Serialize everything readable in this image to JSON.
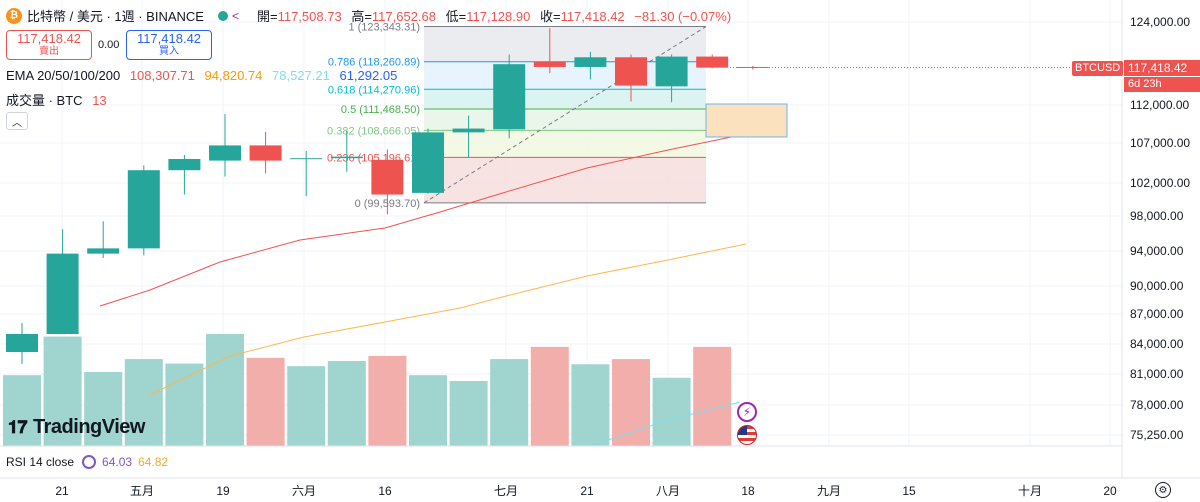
{
  "header": {
    "symbol_title": "比特幣 / 美元 · 1週 · BINANCE",
    "coin_glyph": "₿",
    "ohlc": {
      "open_label": "開=",
      "open": "117,508.73",
      "high_label": "高=",
      "high": "117,652.68",
      "low_label": "低=",
      "low": "117,128.90",
      "close_label": "收=",
      "close": "117,418.42",
      "change": "−81.30 (−0.07%)"
    }
  },
  "trade": {
    "sell_price": "117,418.42",
    "sell_label": "賣出",
    "spread": "0.00",
    "buy_price": "117,418.42",
    "buy_label": "買入"
  },
  "indicators": {
    "ema_label": "EMA 20/50/100/200",
    "ema_values": [
      "108,307.71",
      "94,820.74",
      "78,527.21",
      "61,292.05"
    ],
    "volume_label": "成交量 · BTC",
    "volume_value": "13",
    "rsi_label": "RSI 14 close",
    "rsi_values": [
      "64.03",
      "64.82"
    ]
  },
  "fib_levels": [
    {
      "label": "1 (123,343.31)",
      "ratio": 1,
      "price": 123343.31
    },
    {
      "label": "0.786 (118,260.89)",
      "ratio": 0.786,
      "price": 118260.89
    },
    {
      "label": "0.618 (114,270.96)",
      "ratio": 0.618,
      "price": 114270.96
    },
    {
      "label": "0.5 (111,468.50)",
      "ratio": 0.5,
      "price": 111468.5
    },
    {
      "label": "0.382 (108,666.05)",
      "ratio": 0.382,
      "price": 108666.05
    },
    {
      "label": "0.236 (105,196.61)",
      "ratio": 0.236,
      "price": 105196.61
    },
    {
      "label": "0 (99,593.70)",
      "ratio": 0,
      "price": 99593.7
    }
  ],
  "price_axis": {
    "ticks": [
      "124,000.00",
      "112,000.00",
      "107,000.00",
      "102,000.00",
      "98,000.00",
      "94,000.00",
      "90,000.00",
      "87,000.00",
      "84,000.00",
      "81,000.00",
      "78,000.00",
      "75,250.00"
    ],
    "last_price": "117,418.42",
    "symbol_tag": "BTCUSD",
    "countdown": "6d 23h"
  },
  "time_axis": [
    "21",
    "五月",
    "19",
    "六月",
    "16",
    "七月",
    "21",
    "八月",
    "18",
    "九月",
    "15",
    "十月",
    "20"
  ],
  "chart_data": {
    "type": "candlestick",
    "series": [
      {
        "name": "candles",
        "values": [
          {
            "o": 83200,
            "h": 86100,
            "l": 82000,
            "c": 85000
          },
          {
            "o": 85000,
            "h": 96500,
            "l": 85000,
            "c": 93700
          },
          {
            "o": 93700,
            "h": 97400,
            "l": 93200,
            "c": 94300
          },
          {
            "o": 94300,
            "h": 104200,
            "l": 93500,
            "c": 103600
          },
          {
            "o": 103600,
            "h": 105500,
            "l": 100600,
            "c": 105000
          },
          {
            "o": 104800,
            "h": 110800,
            "l": 102800,
            "c": 106700
          },
          {
            "o": 106700,
            "h": 108500,
            "l": 103200,
            "c": 104800
          },
          {
            "o": 105100,
            "h": 106000,
            "l": 100400,
            "c": 105100
          },
          {
            "o": 105100,
            "h": 108600,
            "l": 103400,
            "c": 105300
          },
          {
            "o": 104900,
            "h": 106200,
            "l": 98200,
            "c": 100600
          },
          {
            "o": 100800,
            "h": 108900,
            "l": 100700,
            "c": 108400
          },
          {
            "o": 108400,
            "h": 110600,
            "l": 105200,
            "c": 108900
          },
          {
            "o": 108800,
            "h": 119300,
            "l": 107600,
            "c": 117900
          },
          {
            "o": 118300,
            "h": 123100,
            "l": 116600,
            "c": 117500
          },
          {
            "o": 117500,
            "h": 119700,
            "l": 115700,
            "c": 118900
          },
          {
            "o": 118900,
            "h": 119300,
            "l": 112500,
            "c": 114800
          },
          {
            "o": 114700,
            "h": 119300,
            "l": 112400,
            "c": 119000
          },
          {
            "o": 119000,
            "h": 119300,
            "l": 117300,
            "c": 117400
          },
          {
            "o": 117500,
            "h": 117650,
            "l": 117130,
            "c": 117420
          }
        ]
      },
      {
        "name": "volume",
        "values": [
          11000,
          17000,
          11500,
          13500,
          12800,
          17400,
          13700,
          12400,
          13200,
          14000,
          11000,
          10100,
          13500,
          15400,
          12700,
          13500,
          10600,
          15400,
          0
        ]
      }
    ],
    "ylim": [
      73000,
      127000
    ]
  }
}
